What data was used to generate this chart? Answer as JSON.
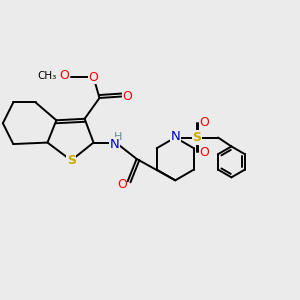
{
  "background_color": "#ebebeb",
  "bond_color": "#000000",
  "atom_colors": {
    "O": "#ff0000",
    "N": "#0000cd",
    "S_thio": "#ccaa00",
    "S_sulfonyl": "#ccaa00",
    "H": "#5a9090",
    "C": "#000000"
  },
  "lw": 1.4,
  "fig_width": 3.0,
  "fig_height": 3.0,
  "xlim": [
    0,
    10
  ],
  "ylim": [
    0,
    10
  ]
}
